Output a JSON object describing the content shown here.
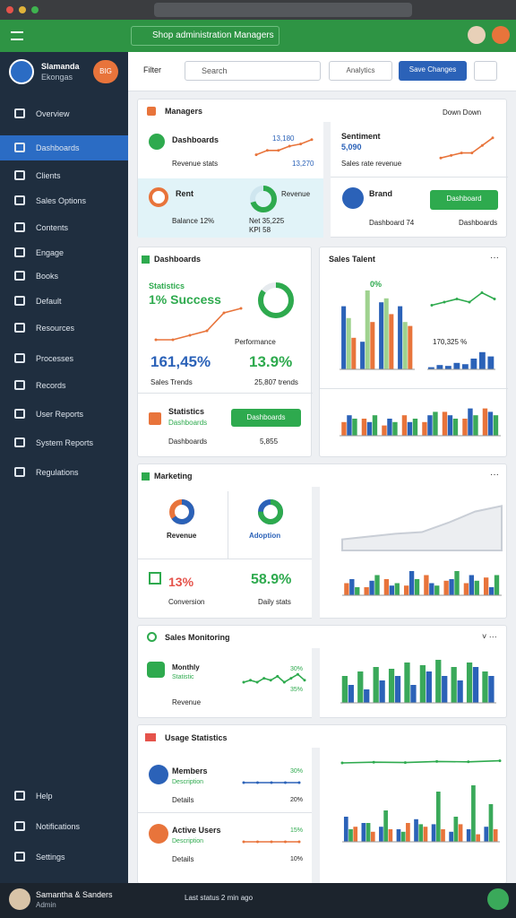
{
  "header": {
    "title": "Shop administration Managers"
  },
  "toolbar": {
    "label": "Filter",
    "search": "Search",
    "button": "Analytics",
    "primary": "Save Changes"
  },
  "sidebar": {
    "name": "Slamanda",
    "role": "Ekongas",
    "badge": "BIG",
    "active": 1,
    "items": [
      "Overview",
      "Dashboards",
      "Clients",
      "Sales Options",
      "Contents",
      "Engage",
      "Books",
      "Default",
      "Resources",
      "Processes",
      "Records",
      "User Reports",
      "System Reports",
      "Regulations"
    ],
    "bottom_items": [
      "Help",
      "Notifications",
      "Settings"
    ]
  },
  "footer": {
    "user": "Samantha & Sanders",
    "role": "Admin",
    "status": "Last status 2 min ago"
  },
  "s1": {
    "title": "Managers",
    "action": "Down Down",
    "a_label": "Dashboards",
    "a_sub": "Revenue stats",
    "a_v1": "13,180",
    "a_v2": "13,270",
    "a_line": {
      "type": "line",
      "values": [
        1,
        3,
        3,
        5,
        6,
        8
      ],
      "ylim": [
        0,
        10
      ],
      "color": "#e8743b"
    },
    "b_label": "Rent",
    "b_sub": "Balance 12%",
    "b_sub2": "KPI 58",
    "b_right": "Revenue",
    "b_right_sub": "Net 35,225",
    "b_donut": {
      "type": "donut",
      "value": 70,
      "ylim": [
        0,
        100
      ],
      "color": "#2eaa4e",
      "track": "#cfe6ef"
    },
    "c_label": "Sentiment",
    "c_value": "5,090",
    "c_sub": "Sales rate revenue",
    "c_line": {
      "type": "line",
      "values": [
        1,
        2,
        3,
        3,
        6,
        9
      ],
      "ylim": [
        0,
        10
      ],
      "color": "#e8743b"
    },
    "d_label": "Brand",
    "d_sub": "Dashboard 74",
    "d_button": "Dashboard",
    "d_sub2": "Dashboards"
  },
  "s2": {
    "title": "Dashboards",
    "stat_label": "Statistics",
    "stat_value": "1% Success",
    "perf": "Performance",
    "big1": "161,45%",
    "big2": "13.9%",
    "trend1": "Sales Trends",
    "trend2": "25,807 trends",
    "bottom_label": "Statistics",
    "bottom_sub": "Dashboards",
    "bottom_button": "Dashboards",
    "bottom_left": "Dashboards",
    "bottom_right": "5,855",
    "line": {
      "type": "line",
      "values": [
        1,
        1,
        2,
        3,
        7,
        8
      ],
      "ylim": [
        0,
        10
      ],
      "color": "#e8743b"
    },
    "donut": {
      "type": "donut",
      "value": 85,
      "ylim": [
        0,
        100
      ],
      "color": "#2eaa4e",
      "track": "#e6eaee"
    },
    "right_title": "Sales Talent",
    "right_tag": "0%",
    "right_value": "170,325 %",
    "bars": {
      "type": "bars",
      "ylim": [
        0,
        100
      ],
      "series": [
        {
          "color": "#2b62b8",
          "values": [
            80,
            35,
            85,
            80
          ]
        },
        {
          "color": "#9fd28f",
          "values": [
            65,
            100,
            90,
            60
          ]
        },
        {
          "color": "#e8743b",
          "values": [
            40,
            60,
            70,
            55
          ]
        }
      ]
    },
    "line2": {
      "type": "line",
      "values": [
        3,
        4,
        5,
        4,
        7,
        5
      ],
      "ylim": [
        0,
        10
      ],
      "color": "#2eaa4e"
    },
    "bars2": {
      "type": "bars",
      "ylim": [
        0,
        50
      ],
      "series": [
        {
          "color": "#2b62b8",
          "values": [
            5,
            10,
            8,
            15,
            12,
            25,
            40,
            30
          ]
        }
      ]
    },
    "bars3": {
      "type": "bars",
      "ylim": [
        0,
        50
      ],
      "series": [
        {
          "color": "#e8743b",
          "values": [
            20,
            25,
            15,
            30,
            20,
            35,
            25,
            40
          ]
        },
        {
          "color": "#2b62b8",
          "values": [
            30,
            20,
            25,
            20,
            30,
            30,
            40,
            35
          ]
        },
        {
          "color": "#3aa95a",
          "values": [
            25,
            30,
            20,
            25,
            35,
            25,
            30,
            30
          ]
        }
      ]
    }
  },
  "s3": {
    "title": "Marketing",
    "donut1_label": "Revenue",
    "donut2_label": "Adoption",
    "red_value": "13%",
    "green_value": "58.9%",
    "left_label": "Conversion",
    "right_label": "Daily stats",
    "donut1": {
      "type": "donut",
      "value": 65,
      "ylim": [
        0,
        100
      ],
      "color": "#2b62b8",
      "track": "#e8743b"
    },
    "donut2": {
      "type": "donut",
      "value": 75,
      "ylim": [
        0,
        100
      ],
      "color": "#2eaa4e",
      "track": "#2b62b8"
    },
    "area": {
      "type": "area",
      "values": [
        2,
        2.5,
        3,
        3.3,
        5,
        7,
        8
      ],
      "ylim": [
        0,
        10
      ],
      "color": "#c9ced6"
    },
    "bars": {
      "type": "bars",
      "ylim": [
        0,
        40
      ],
      "series": [
        {
          "color": "#e8743b",
          "values": [
            15,
            10,
            20,
            12,
            25,
            18,
            15,
            22
          ]
        },
        {
          "color": "#2b62b8",
          "values": [
            20,
            18,
            12,
            30,
            15,
            20,
            25,
            10
          ]
        },
        {
          "color": "#3aa95a",
          "values": [
            10,
            25,
            15,
            20,
            12,
            30,
            18,
            25
          ]
        }
      ]
    }
  },
  "s4": {
    "title": "Sales Monitoring",
    "label": "Monthly",
    "sub": "Statistic",
    "foot": "Revenue",
    "v1": "30%",
    "v2": "35%",
    "line": {
      "type": "line",
      "values": [
        5,
        6,
        5,
        7,
        6,
        8,
        5,
        7,
        9,
        6
      ],
      "ylim": [
        0,
        10
      ],
      "color": "#2eaa4e"
    },
    "bars": {
      "type": "bars",
      "ylim": [
        0,
        50
      ],
      "series": [
        {
          "color": "#3aa95a",
          "values": [
            30,
            35,
            40,
            38,
            45,
            42,
            48,
            40,
            45,
            35
          ]
        },
        {
          "color": "#2b62b8",
          "values": [
            20,
            15,
            25,
            30,
            20,
            35,
            30,
            25,
            40,
            30
          ]
        }
      ]
    }
  },
  "s5": {
    "title": "Usage Statistics",
    "r1_label": "Members",
    "r1_sub": "Description",
    "r1_foot": "Details",
    "r1_v1": "30%",
    "r1_v2": "20%",
    "r2_label": "Active Users",
    "r2_sub": "Description",
    "r2_foot": "Details",
    "r2_v1": "15%",
    "r2_v2": "10%",
    "r1_line": {
      "type": "line",
      "values": [
        5,
        5,
        5,
        5,
        5
      ],
      "ylim": [
        0,
        10
      ],
      "color": "#2b62b8"
    },
    "r2_line": {
      "type": "line",
      "values": [
        5,
        5,
        5,
        5,
        5
      ],
      "ylim": [
        0,
        10
      ],
      "color": "#e8743b"
    },
    "bars": {
      "type": "bars",
      "ylim": [
        0,
        50
      ],
      "series": [
        {
          "color": "#2b62b8",
          "values": [
            20,
            15,
            12,
            10,
            18,
            14,
            8,
            10,
            12
          ]
        },
        {
          "color": "#3aa95a",
          "values": [
            10,
            15,
            25,
            8,
            14,
            40,
            20,
            45,
            30
          ]
        },
        {
          "color": "#e8743b",
          "values": [
            12,
            8,
            10,
            15,
            12,
            10,
            14,
            6,
            10
          ]
        }
      ]
    },
    "trend": {
      "type": "line",
      "values": [
        40,
        42,
        41,
        44,
        43,
        46
      ],
      "ylim": [
        0,
        50
      ],
      "color": "#2eaa4e"
    }
  }
}
